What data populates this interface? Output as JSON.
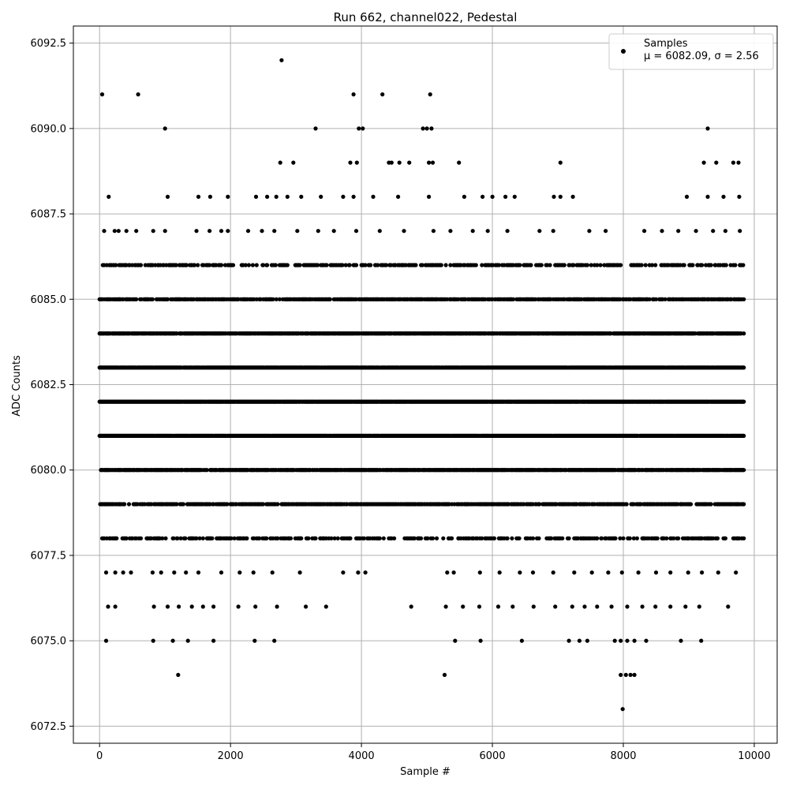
{
  "chart_data": {
    "type": "scatter",
    "title": "Run 662, channel022, Pedestal",
    "xlabel": "Sample #",
    "ylabel": "ADC Counts",
    "xlim": [
      -400,
      10350
    ],
    "ylim": [
      6072.0,
      6093.0
    ],
    "xticks": [
      0,
      2000,
      4000,
      6000,
      8000,
      10000
    ],
    "yticks": [
      6072.5,
      6075.0,
      6077.5,
      6080.0,
      6082.5,
      6085.0,
      6087.5,
      6090.0,
      6092.5
    ],
    "xtick_labels": [
      "0",
      "2000",
      "4000",
      "6000",
      "8000",
      "10000"
    ],
    "ytick_labels": [
      "6072.5",
      "6075.0",
      "6077.5",
      "6080.0",
      "6082.5",
      "6085.0",
      "6087.5",
      "6090.0",
      "6092.5"
    ],
    "grid": true,
    "legend": {
      "position": "top-right",
      "entries": [
        {
          "name": "Samples",
          "stat_label": "μ = 6082.09, σ = 2.56",
          "marker": "dot",
          "color": "#000000"
        }
      ]
    },
    "series": [
      {
        "name": "Samples",
        "color": "#000000",
        "n_samples": 9840,
        "dense_levels": [
          6078,
          6079,
          6080,
          6081,
          6082,
          6083,
          6084,
          6085,
          6086
        ],
        "sparse_points": [
          [
            40,
            6091
          ],
          [
            590,
            6091
          ],
          [
            1000,
            6090
          ],
          [
            2780,
            6092
          ],
          [
            3880,
            6091
          ],
          [
            4320,
            6091
          ],
          [
            5050,
            6091
          ],
          [
            3300,
            6090
          ],
          [
            3960,
            6090
          ],
          [
            4020,
            6090
          ],
          [
            4940,
            6090
          ],
          [
            5000,
            6090
          ],
          [
            5070,
            6090
          ],
          [
            9290,
            6090
          ],
          [
            2760,
            6089
          ],
          [
            2960,
            6089
          ],
          [
            3830,
            6089
          ],
          [
            3930,
            6089
          ],
          [
            4420,
            6089
          ],
          [
            4460,
            6089
          ],
          [
            4580,
            6089
          ],
          [
            4730,
            6089
          ],
          [
            5030,
            6089
          ],
          [
            5090,
            6089
          ],
          [
            5490,
            6089
          ],
          [
            7040,
            6089
          ],
          [
            9230,
            6089
          ],
          [
            9420,
            6089
          ],
          [
            9680,
            6089
          ],
          [
            9760,
            6089
          ],
          [
            140,
            6088
          ],
          [
            1040,
            6088
          ],
          [
            1510,
            6088
          ],
          [
            1690,
            6088
          ],
          [
            1960,
            6088
          ],
          [
            2390,
            6088
          ],
          [
            2560,
            6088
          ],
          [
            2700,
            6088
          ],
          [
            2870,
            6088
          ],
          [
            3080,
            6088
          ],
          [
            3380,
            6088
          ],
          [
            3720,
            6088
          ],
          [
            3880,
            6088
          ],
          [
            4180,
            6088
          ],
          [
            4560,
            6088
          ],
          [
            5030,
            6088
          ],
          [
            5570,
            6088
          ],
          [
            5850,
            6088
          ],
          [
            6000,
            6088
          ],
          [
            6200,
            6088
          ],
          [
            6340,
            6088
          ],
          [
            6940,
            6088
          ],
          [
            7040,
            6088
          ],
          [
            7230,
            6088
          ],
          [
            8970,
            6088
          ],
          [
            9290,
            6088
          ],
          [
            9530,
            6088
          ],
          [
            9770,
            6088
          ],
          [
            70,
            6087
          ],
          [
            230,
            6087
          ],
          [
            290,
            6087
          ],
          [
            410,
            6087
          ],
          [
            560,
            6087
          ],
          [
            820,
            6087
          ],
          [
            1000,
            6087
          ],
          [
            1480,
            6087
          ],
          [
            1680,
            6087
          ],
          [
            1860,
            6087
          ],
          [
            1960,
            6087
          ],
          [
            2270,
            6087
          ],
          [
            2480,
            6087
          ],
          [
            2670,
            6087
          ],
          [
            3020,
            6087
          ],
          [
            3340,
            6087
          ],
          [
            3580,
            6087
          ],
          [
            3920,
            6087
          ],
          [
            4280,
            6087
          ],
          [
            4650,
            6087
          ],
          [
            5100,
            6087
          ],
          [
            5360,
            6087
          ],
          [
            5700,
            6087
          ],
          [
            5930,
            6087
          ],
          [
            6230,
            6087
          ],
          [
            6720,
            6087
          ],
          [
            6930,
            6087
          ],
          [
            7480,
            6087
          ],
          [
            7730,
            6087
          ],
          [
            8320,
            6087
          ],
          [
            8590,
            6087
          ],
          [
            8840,
            6087
          ],
          [
            9110,
            6087
          ],
          [
            9370,
            6087
          ],
          [
            9560,
            6087
          ],
          [
            9780,
            6087
          ],
          [
            100,
            6077
          ],
          [
            240,
            6077
          ],
          [
            360,
            6077
          ],
          [
            480,
            6077
          ],
          [
            810,
            6077
          ],
          [
            940,
            6077
          ],
          [
            1140,
            6077
          ],
          [
            1320,
            6077
          ],
          [
            1510,
            6077
          ],
          [
            1860,
            6077
          ],
          [
            2140,
            6077
          ],
          [
            2350,
            6077
          ],
          [
            2640,
            6077
          ],
          [
            3060,
            6077
          ],
          [
            3720,
            6077
          ],
          [
            3950,
            6077
          ],
          [
            4060,
            6077
          ],
          [
            5310,
            6077
          ],
          [
            5410,
            6077
          ],
          [
            5810,
            6077
          ],
          [
            6110,
            6077
          ],
          [
            6420,
            6077
          ],
          [
            6620,
            6077
          ],
          [
            6930,
            6077
          ],
          [
            7250,
            6077
          ],
          [
            7520,
            6077
          ],
          [
            7770,
            6077
          ],
          [
            7980,
            6077
          ],
          [
            8230,
            6077
          ],
          [
            8500,
            6077
          ],
          [
            8720,
            6077
          ],
          [
            8990,
            6077
          ],
          [
            9200,
            6077
          ],
          [
            9450,
            6077
          ],
          [
            9720,
            6077
          ],
          [
            130,
            6076
          ],
          [
            240,
            6076
          ],
          [
            830,
            6076
          ],
          [
            1040,
            6076
          ],
          [
            1210,
            6076
          ],
          [
            1410,
            6076
          ],
          [
            1580,
            6076
          ],
          [
            1740,
            6076
          ],
          [
            2120,
            6076
          ],
          [
            2380,
            6076
          ],
          [
            2710,
            6076
          ],
          [
            3150,
            6076
          ],
          [
            3460,
            6076
          ],
          [
            4760,
            6076
          ],
          [
            5290,
            6076
          ],
          [
            5550,
            6076
          ],
          [
            5800,
            6076
          ],
          [
            6090,
            6076
          ],
          [
            6310,
            6076
          ],
          [
            6630,
            6076
          ],
          [
            6960,
            6076
          ],
          [
            7220,
            6076
          ],
          [
            7410,
            6076
          ],
          [
            7600,
            6076
          ],
          [
            7820,
            6076
          ],
          [
            8060,
            6076
          ],
          [
            8290,
            6076
          ],
          [
            8490,
            6076
          ],
          [
            8720,
            6076
          ],
          [
            8950,
            6076
          ],
          [
            9160,
            6076
          ],
          [
            9600,
            6076
          ],
          [
            100,
            6075
          ],
          [
            820,
            6075
          ],
          [
            1120,
            6075
          ],
          [
            1350,
            6075
          ],
          [
            1740,
            6075
          ],
          [
            2370,
            6075
          ],
          [
            2670,
            6075
          ],
          [
            5430,
            6075
          ],
          [
            5820,
            6075
          ],
          [
            6450,
            6075
          ],
          [
            7170,
            6075
          ],
          [
            7330,
            6075
          ],
          [
            7450,
            6075
          ],
          [
            7870,
            6075
          ],
          [
            7960,
            6075
          ],
          [
            8060,
            6075
          ],
          [
            8170,
            6075
          ],
          [
            8350,
            6075
          ],
          [
            8880,
            6075
          ],
          [
            9190,
            6075
          ],
          [
            1200,
            6074
          ],
          [
            5270,
            6074
          ],
          [
            7960,
            6074
          ],
          [
            8040,
            6074
          ],
          [
            8110,
            6074
          ],
          [
            8170,
            6074
          ],
          [
            7990,
            6073
          ]
        ]
      }
    ]
  }
}
